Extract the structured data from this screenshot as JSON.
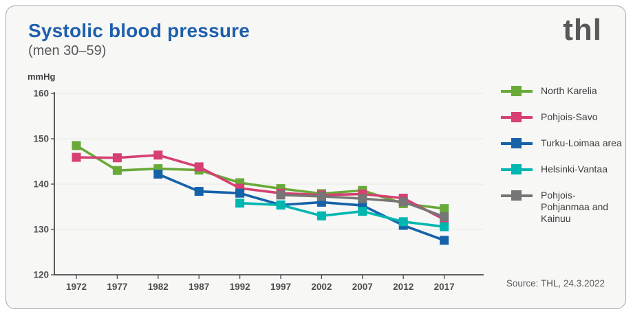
{
  "header": {
    "title": "Systolic blood pressure",
    "subtitle": "(men 30–59)",
    "logo": "thl"
  },
  "footer": {
    "source": "Source: THL, 24.3.2022"
  },
  "colors": {
    "title_blue": "#1e5fac",
    "axis_gray": "#4a4a4a",
    "grid_gray": "#e7e7e7",
    "card_background": "#f7f7f6"
  },
  "chart_data": {
    "type": "line",
    "title": "Systolic blood pressure (men 30–59)",
    "unit_label": "mmHg",
    "xlabel": "",
    "ylabel": "mmHg",
    "x": [
      1972,
      1977,
      1982,
      1987,
      1992,
      1997,
      2002,
      2007,
      2012,
      2017
    ],
    "ylim": [
      120,
      160
    ],
    "yticks": [
      120,
      130,
      140,
      150,
      160
    ],
    "grid": true,
    "legend_position": "right",
    "marker": "square",
    "series": [
      {
        "name": "North Karelia",
        "color": "#69A938",
        "values": [
          148.5,
          143.0,
          143.4,
          143.1,
          140.3,
          139.0,
          137.9,
          138.6,
          135.7,
          134.6
        ]
      },
      {
        "name": "Pohjois-Savo",
        "color": "#D64072",
        "values": [
          145.9,
          145.8,
          146.4,
          143.8,
          139.1,
          138.0,
          137.6,
          137.8,
          136.9,
          132.2
        ]
      },
      {
        "name": "Turku-Loimaa area",
        "color": "#1562A9",
        "values": [
          null,
          null,
          142.2,
          138.4,
          138.0,
          135.4,
          136.0,
          135.3,
          130.9,
          127.6
        ]
      },
      {
        "name": "Helsinki-Vantaa",
        "color": "#00B6B0",
        "values": [
          null,
          null,
          null,
          null,
          135.8,
          135.4,
          133.0,
          134.0,
          131.7,
          130.6
        ]
      },
      {
        "name": "Pohjois-Pohjanmaa and Kainuu",
        "color": "#767676",
        "values": [
          null,
          null,
          null,
          null,
          null,
          137.6,
          137.3,
          136.8,
          136.1,
          132.8
        ]
      }
    ]
  }
}
